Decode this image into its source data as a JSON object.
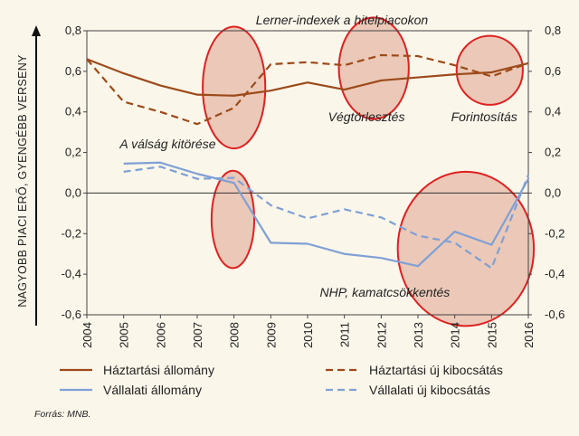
{
  "chart_data": {
    "type": "line",
    "title": "Lerner-indexek a hitelpiacokon",
    "ylabel": "NAGYOBB PIACI ERŐ, GYENGÉBB VERSENY",
    "ylim": [
      -0.6,
      0.8
    ],
    "yticks": [
      "0,8",
      "0,6",
      "0,4",
      "0,2",
      "0,0",
      "-0,2",
      "-0,4",
      "-0,6"
    ],
    "ytick_values": [
      0.8,
      0.6,
      0.4,
      0.2,
      0.0,
      -0.2,
      -0.4,
      -0.6
    ],
    "x": [
      "2004",
      "2005",
      "2006",
      "2007",
      "2008",
      "2009",
      "2010",
      "2011",
      "2012",
      "2013",
      "2014",
      "2015",
      "2016"
    ],
    "series": [
      {
        "name": "Háztartási állomány",
        "color": "#9c4a1a",
        "style": "solid",
        "x": [
          2004,
          2005,
          2006,
          2007,
          2008,
          2009,
          2010,
          2011,
          2012,
          2013,
          2014,
          2015,
          2016
        ],
        "values": [
          0.66,
          0.59,
          0.53,
          0.485,
          0.48,
          0.505,
          0.545,
          0.51,
          0.555,
          0.57,
          0.585,
          0.595,
          0.64
        ]
      },
      {
        "name": "Háztartási új kibocsátás",
        "color": "#9c4a1a",
        "style": "dashed",
        "x": [
          2004,
          2005,
          2006,
          2007,
          2008,
          2009,
          2010,
          2011,
          2012,
          2013,
          2014,
          2015,
          2016
        ],
        "values": [
          0.66,
          0.45,
          0.4,
          0.34,
          0.42,
          0.635,
          0.645,
          0.63,
          0.68,
          0.675,
          0.63,
          0.575,
          0.64
        ]
      },
      {
        "name": "Vállalati állomány",
        "color": "#7fa0d6",
        "style": "solid",
        "x": [
          2005,
          2006,
          2007,
          2008,
          2009,
          2010,
          2011,
          2012,
          2013,
          2014,
          2015,
          2016
        ],
        "values": [
          0.145,
          0.15,
          0.095,
          0.05,
          -0.245,
          -0.25,
          -0.3,
          -0.32,
          -0.36,
          -0.19,
          -0.255,
          0.07
        ]
      },
      {
        "name": "Vállalati új kibocsátás",
        "color": "#7fa0d6",
        "style": "dashed",
        "x": [
          2005,
          2006,
          2007,
          2008,
          2009,
          2010,
          2011,
          2012,
          2013,
          2014,
          2015,
          2016
        ],
        "values": [
          0.105,
          0.13,
          0.07,
          0.075,
          -0.06,
          -0.125,
          -0.08,
          -0.12,
          -0.21,
          -0.245,
          -0.37,
          0.09
        ]
      }
    ],
    "annotations": [
      {
        "text": "A válság kitörése",
        "x": 2006.2,
        "y": 0.22
      },
      {
        "text": "Végtörlesztés",
        "x": 2011.6,
        "y": 0.355
      },
      {
        "text": "Forintosítás",
        "x": 2014.8,
        "y": 0.355
      },
      {
        "text": "NHP, kamatcsökkentés",
        "x": 2012.1,
        "y": -0.51
      }
    ],
    "highlight_circles": [
      {
        "cx": 2008.0,
        "cy": 0.52,
        "rx": 0.85,
        "ry": 0.3
      },
      {
        "cx": 2011.8,
        "cy": 0.615,
        "rx": 0.95,
        "ry": 0.25
      },
      {
        "cx": 2014.95,
        "cy": 0.605,
        "rx": 0.9,
        "ry": 0.17
      },
      {
        "cx": 2007.97,
        "cy": -0.13,
        "rx": 0.58,
        "ry": 0.24
      },
      {
        "cx": 2014.3,
        "cy": -0.275,
        "rx": 1.85,
        "ry": 0.38
      }
    ],
    "highlight_fill": "#e8bfae",
    "highlight_stroke": "#e02020",
    "legend_position": "bottom",
    "grid": false,
    "secondary_axis_mirror": true
  },
  "source": "Forrás: MNB."
}
